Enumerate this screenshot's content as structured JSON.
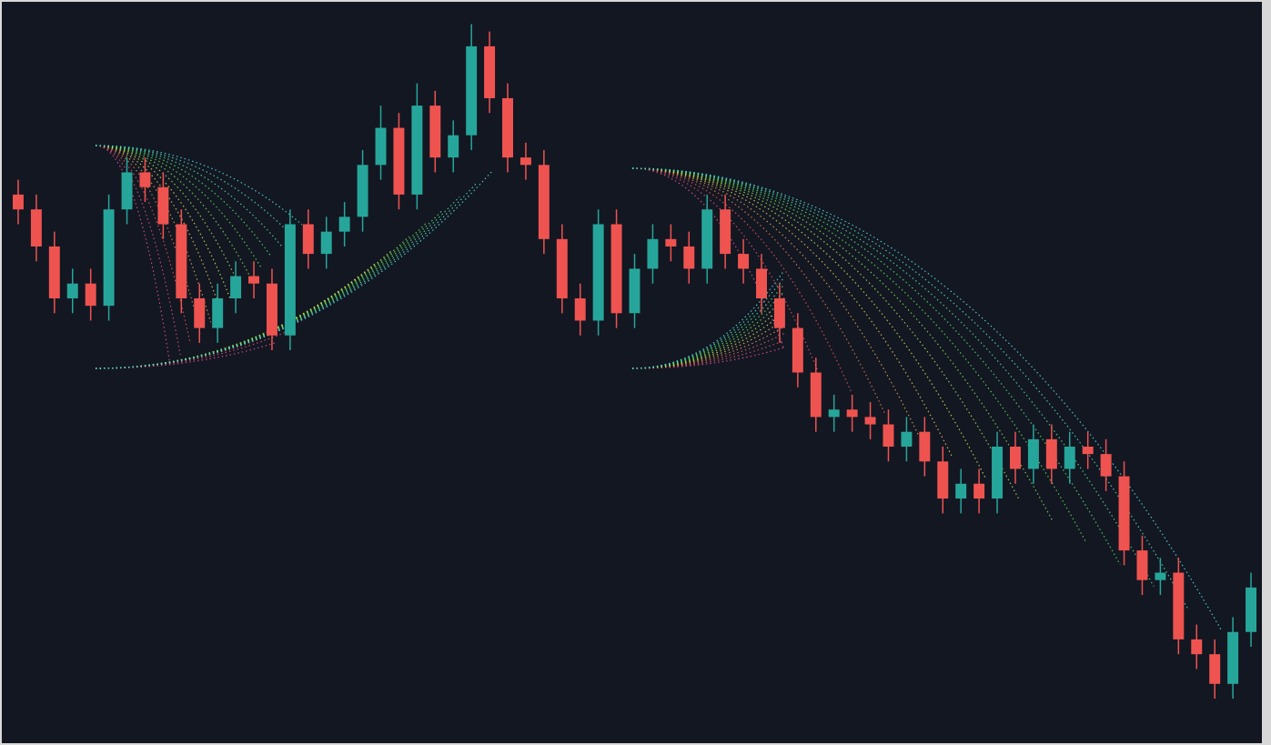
{
  "chart_data": {
    "type": "candlestick",
    "ylim": [
      0,
      100
    ],
    "up_color": "#26a69a",
    "down_color": "#ef5350",
    "open": [
      74,
      72,
      67,
      60,
      62,
      59,
      72,
      77,
      75,
      70,
      60,
      56,
      60,
      63,
      62,
      55,
      70,
      66,
      69,
      71,
      78,
      83,
      74,
      86,
      79,
      82,
      94,
      87,
      79,
      78,
      68,
      60,
      57,
      70,
      58,
      64,
      68,
      67,
      64,
      72,
      66,
      64,
      60,
      56,
      50,
      44,
      45,
      44,
      43,
      40,
      42,
      38,
      33,
      35,
      33,
      40,
      37,
      41,
      37,
      40,
      39,
      36,
      26,
      22,
      23,
      14,
      12,
      8,
      15
    ],
    "high": [
      76,
      74,
      69,
      64,
      64,
      74,
      79,
      79,
      77,
      72,
      62,
      62,
      65,
      65,
      64,
      72,
      72,
      71,
      73,
      80,
      86,
      85,
      89,
      88,
      84,
      97,
      96,
      89,
      81,
      80,
      70,
      62,
      72,
      72,
      66,
      70,
      70,
      69,
      74,
      74,
      68,
      66,
      62,
      58,
      52,
      47,
      47,
      46,
      45,
      44,
      44,
      40,
      37,
      37,
      42,
      42,
      43,
      43,
      42,
      42,
      41,
      38,
      28,
      25,
      25,
      16,
      14,
      17,
      23
    ],
    "low": [
      70,
      65,
      58,
      58,
      57,
      57,
      70,
      73,
      68,
      58,
      54,
      54,
      58,
      60,
      53,
      53,
      64,
      64,
      67,
      69,
      76,
      72,
      72,
      77,
      77,
      80,
      85,
      77,
      76,
      66,
      58,
      55,
      55,
      56,
      56,
      62,
      65,
      62,
      62,
      64,
      62,
      58,
      54,
      48,
      42,
      42,
      42,
      41,
      38,
      38,
      36,
      31,
      31,
      31,
      31,
      35,
      35,
      35,
      35,
      37,
      34,
      24,
      20,
      20,
      12,
      10,
      6,
      6,
      13
    ],
    "close": [
      72,
      67,
      60,
      62,
      59,
      72,
      77,
      75,
      70,
      60,
      56,
      60,
      63,
      62,
      55,
      70,
      66,
      69,
      71,
      78,
      83,
      74,
      86,
      79,
      82,
      94,
      87,
      79,
      78,
      68,
      60,
      57,
      70,
      58,
      64,
      68,
      67,
      64,
      72,
      66,
      64,
      60,
      56,
      50,
      44,
      45,
      44,
      43,
      40,
      42,
      38,
      33,
      35,
      33,
      40,
      37,
      41,
      37,
      40,
      39,
      36,
      26,
      22,
      23,
      14,
      12,
      8,
      15,
      21
    ]
  }
}
